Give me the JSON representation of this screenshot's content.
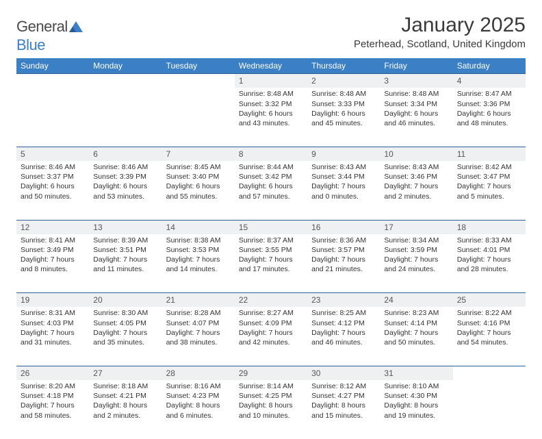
{
  "logo": {
    "text_a": "General",
    "text_b": "Blue"
  },
  "title": "January 2025",
  "location": "Peterhead, Scotland, United Kingdom",
  "colors": {
    "header_bg": "#3b7fc4",
    "header_text": "#ffffff",
    "daynum_bg": "#eef0f2",
    "rule": "#2f5d94",
    "body_text": "#333333",
    "page_bg": "#ffffff"
  },
  "fonts": {
    "title_pt": 30,
    "location_pt": 15,
    "dayhead_pt": 12,
    "cell_pt": 10.5
  },
  "day_names": [
    "Sunday",
    "Monday",
    "Tuesday",
    "Wednesday",
    "Thursday",
    "Friday",
    "Saturday"
  ],
  "weeks": [
    {
      "nums": [
        "",
        "",
        "",
        "1",
        "2",
        "3",
        "4"
      ],
      "cells": [
        null,
        null,
        null,
        {
          "sunrise": "Sunrise: 8:48 AM",
          "sunset": "Sunset: 3:32 PM",
          "dl1": "Daylight: 6 hours",
          "dl2": "and 43 minutes."
        },
        {
          "sunrise": "Sunrise: 8:48 AM",
          "sunset": "Sunset: 3:33 PM",
          "dl1": "Daylight: 6 hours",
          "dl2": "and 45 minutes."
        },
        {
          "sunrise": "Sunrise: 8:48 AM",
          "sunset": "Sunset: 3:34 PM",
          "dl1": "Daylight: 6 hours",
          "dl2": "and 46 minutes."
        },
        {
          "sunrise": "Sunrise: 8:47 AM",
          "sunset": "Sunset: 3:36 PM",
          "dl1": "Daylight: 6 hours",
          "dl2": "and 48 minutes."
        }
      ]
    },
    {
      "nums": [
        "5",
        "6",
        "7",
        "8",
        "9",
        "10",
        "11"
      ],
      "cells": [
        {
          "sunrise": "Sunrise: 8:46 AM",
          "sunset": "Sunset: 3:37 PM",
          "dl1": "Daylight: 6 hours",
          "dl2": "and 50 minutes."
        },
        {
          "sunrise": "Sunrise: 8:46 AM",
          "sunset": "Sunset: 3:39 PM",
          "dl1": "Daylight: 6 hours",
          "dl2": "and 53 minutes."
        },
        {
          "sunrise": "Sunrise: 8:45 AM",
          "sunset": "Sunset: 3:40 PM",
          "dl1": "Daylight: 6 hours",
          "dl2": "and 55 minutes."
        },
        {
          "sunrise": "Sunrise: 8:44 AM",
          "sunset": "Sunset: 3:42 PM",
          "dl1": "Daylight: 6 hours",
          "dl2": "and 57 minutes."
        },
        {
          "sunrise": "Sunrise: 8:43 AM",
          "sunset": "Sunset: 3:44 PM",
          "dl1": "Daylight: 7 hours",
          "dl2": "and 0 minutes."
        },
        {
          "sunrise": "Sunrise: 8:43 AM",
          "sunset": "Sunset: 3:46 PM",
          "dl1": "Daylight: 7 hours",
          "dl2": "and 2 minutes."
        },
        {
          "sunrise": "Sunrise: 8:42 AM",
          "sunset": "Sunset: 3:47 PM",
          "dl1": "Daylight: 7 hours",
          "dl2": "and 5 minutes."
        }
      ]
    },
    {
      "nums": [
        "12",
        "13",
        "14",
        "15",
        "16",
        "17",
        "18"
      ],
      "cells": [
        {
          "sunrise": "Sunrise: 8:41 AM",
          "sunset": "Sunset: 3:49 PM",
          "dl1": "Daylight: 7 hours",
          "dl2": "and 8 minutes."
        },
        {
          "sunrise": "Sunrise: 8:39 AM",
          "sunset": "Sunset: 3:51 PM",
          "dl1": "Daylight: 7 hours",
          "dl2": "and 11 minutes."
        },
        {
          "sunrise": "Sunrise: 8:38 AM",
          "sunset": "Sunset: 3:53 PM",
          "dl1": "Daylight: 7 hours",
          "dl2": "and 14 minutes."
        },
        {
          "sunrise": "Sunrise: 8:37 AM",
          "sunset": "Sunset: 3:55 PM",
          "dl1": "Daylight: 7 hours",
          "dl2": "and 17 minutes."
        },
        {
          "sunrise": "Sunrise: 8:36 AM",
          "sunset": "Sunset: 3:57 PM",
          "dl1": "Daylight: 7 hours",
          "dl2": "and 21 minutes."
        },
        {
          "sunrise": "Sunrise: 8:34 AM",
          "sunset": "Sunset: 3:59 PM",
          "dl1": "Daylight: 7 hours",
          "dl2": "and 24 minutes."
        },
        {
          "sunrise": "Sunrise: 8:33 AM",
          "sunset": "Sunset: 4:01 PM",
          "dl1": "Daylight: 7 hours",
          "dl2": "and 28 minutes."
        }
      ]
    },
    {
      "nums": [
        "19",
        "20",
        "21",
        "22",
        "23",
        "24",
        "25"
      ],
      "cells": [
        {
          "sunrise": "Sunrise: 8:31 AM",
          "sunset": "Sunset: 4:03 PM",
          "dl1": "Daylight: 7 hours",
          "dl2": "and 31 minutes."
        },
        {
          "sunrise": "Sunrise: 8:30 AM",
          "sunset": "Sunset: 4:05 PM",
          "dl1": "Daylight: 7 hours",
          "dl2": "and 35 minutes."
        },
        {
          "sunrise": "Sunrise: 8:28 AM",
          "sunset": "Sunset: 4:07 PM",
          "dl1": "Daylight: 7 hours",
          "dl2": "and 38 minutes."
        },
        {
          "sunrise": "Sunrise: 8:27 AM",
          "sunset": "Sunset: 4:09 PM",
          "dl1": "Daylight: 7 hours",
          "dl2": "and 42 minutes."
        },
        {
          "sunrise": "Sunrise: 8:25 AM",
          "sunset": "Sunset: 4:12 PM",
          "dl1": "Daylight: 7 hours",
          "dl2": "and 46 minutes."
        },
        {
          "sunrise": "Sunrise: 8:23 AM",
          "sunset": "Sunset: 4:14 PM",
          "dl1": "Daylight: 7 hours",
          "dl2": "and 50 minutes."
        },
        {
          "sunrise": "Sunrise: 8:22 AM",
          "sunset": "Sunset: 4:16 PM",
          "dl1": "Daylight: 7 hours",
          "dl2": "and 54 minutes."
        }
      ]
    },
    {
      "nums": [
        "26",
        "27",
        "28",
        "29",
        "30",
        "31",
        ""
      ],
      "cells": [
        {
          "sunrise": "Sunrise: 8:20 AM",
          "sunset": "Sunset: 4:18 PM",
          "dl1": "Daylight: 7 hours",
          "dl2": "and 58 minutes."
        },
        {
          "sunrise": "Sunrise: 8:18 AM",
          "sunset": "Sunset: 4:21 PM",
          "dl1": "Daylight: 8 hours",
          "dl2": "and 2 minutes."
        },
        {
          "sunrise": "Sunrise: 8:16 AM",
          "sunset": "Sunset: 4:23 PM",
          "dl1": "Daylight: 8 hours",
          "dl2": "and 6 minutes."
        },
        {
          "sunrise": "Sunrise: 8:14 AM",
          "sunset": "Sunset: 4:25 PM",
          "dl1": "Daylight: 8 hours",
          "dl2": "and 10 minutes."
        },
        {
          "sunrise": "Sunrise: 8:12 AM",
          "sunset": "Sunset: 4:27 PM",
          "dl1": "Daylight: 8 hours",
          "dl2": "and 15 minutes."
        },
        {
          "sunrise": "Sunrise: 8:10 AM",
          "sunset": "Sunset: 4:30 PM",
          "dl1": "Daylight: 8 hours",
          "dl2": "and 19 minutes."
        },
        null
      ]
    }
  ]
}
